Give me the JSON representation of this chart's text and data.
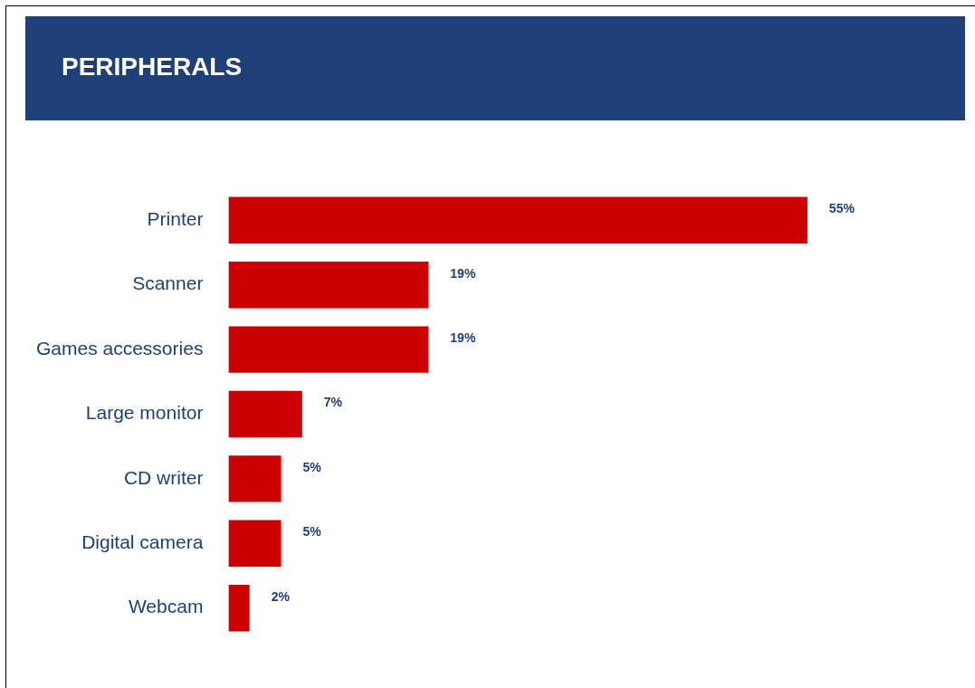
{
  "chart_data": {
    "type": "bar",
    "title": "PERIPHERALS",
    "orientation": "horizontal",
    "categories": [
      "Printer",
      "Scanner",
      "Games accessories",
      "Large monitor",
      "CD writer",
      "Digital camera",
      "Webcam"
    ],
    "values": [
      55,
      19,
      19,
      7,
      5,
      5,
      2
    ],
    "value_labels": [
      "55%",
      "19%",
      "19%",
      "7%",
      "5%",
      "5%",
      "2%"
    ],
    "color": "#cc0000",
    "legend": false
  }
}
